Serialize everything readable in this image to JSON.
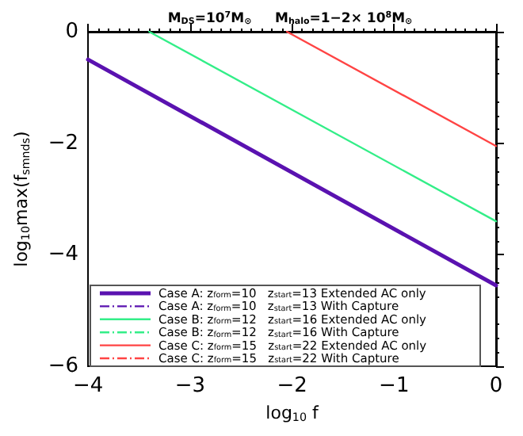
{
  "chart_data": {
    "type": "line",
    "title": "M$_{DS}$=10$^{7}$M$_{⊙}$     M$_{halo}$=1−2× 10$^{8}$M$_{⊙}$",
    "xlabel": "log$_{10}$ f",
    "ylabel": "log$_{10}$max(f$_{smnds}$)",
    "xlim": [
      -4,
      0
    ],
    "xticks": [
      -4,
      -3,
      -2,
      -1,
      0
    ],
    "ylim": [
      -6,
      0
    ],
    "yticks": [
      -6,
      -4,
      -2,
      0
    ],
    "grid": false,
    "legend": "bottom left",
    "marker": "none",
    "series": [
      {
        "name": "Case A: z$_{form}$=10   z$_{start}$=13 Extended AC only",
        "color": "#5a12b0",
        "line_style": "solid",
        "x": [
          -4,
          0
        ],
        "values": [
          -0.5,
          -4.55
        ]
      },
      {
        "name": "Case A: z$_{form}$=10   z$_{start}$=13 With Capture",
        "color": "#5a12b0",
        "line_style": "dashed",
        "values": [
          null,
          null
        ]
      },
      {
        "name": "Case B: z$_{form}$=12   z$_{start}$=16 Extended AC only",
        "color": "#33ee88",
        "line_style": "solid",
        "x": [
          -3.4,
          0
        ],
        "values": [
          0,
          -3.4
        ]
      },
      {
        "name": "Case B: z$_{form}$=12   z$_{start}$=16 With Capture",
        "color": "#33ee88",
        "line_style": "dashed",
        "values": [
          null,
          null
        ]
      },
      {
        "name": "Case C: z$_{form}$=15   z$_{start}$=22 Extended AC only",
        "color": "#ff4444",
        "line_style": "solid",
        "x": [
          -2.05,
          0
        ],
        "values": [
          0,
          -2.05
        ]
      },
      {
        "name": "Case C: z$_{form}$=15   z$_{start}$=22 With Capture",
        "color": "#ff4444",
        "line_style": "dashed",
        "values": [
          null,
          null
        ]
      }
    ]
  }
}
